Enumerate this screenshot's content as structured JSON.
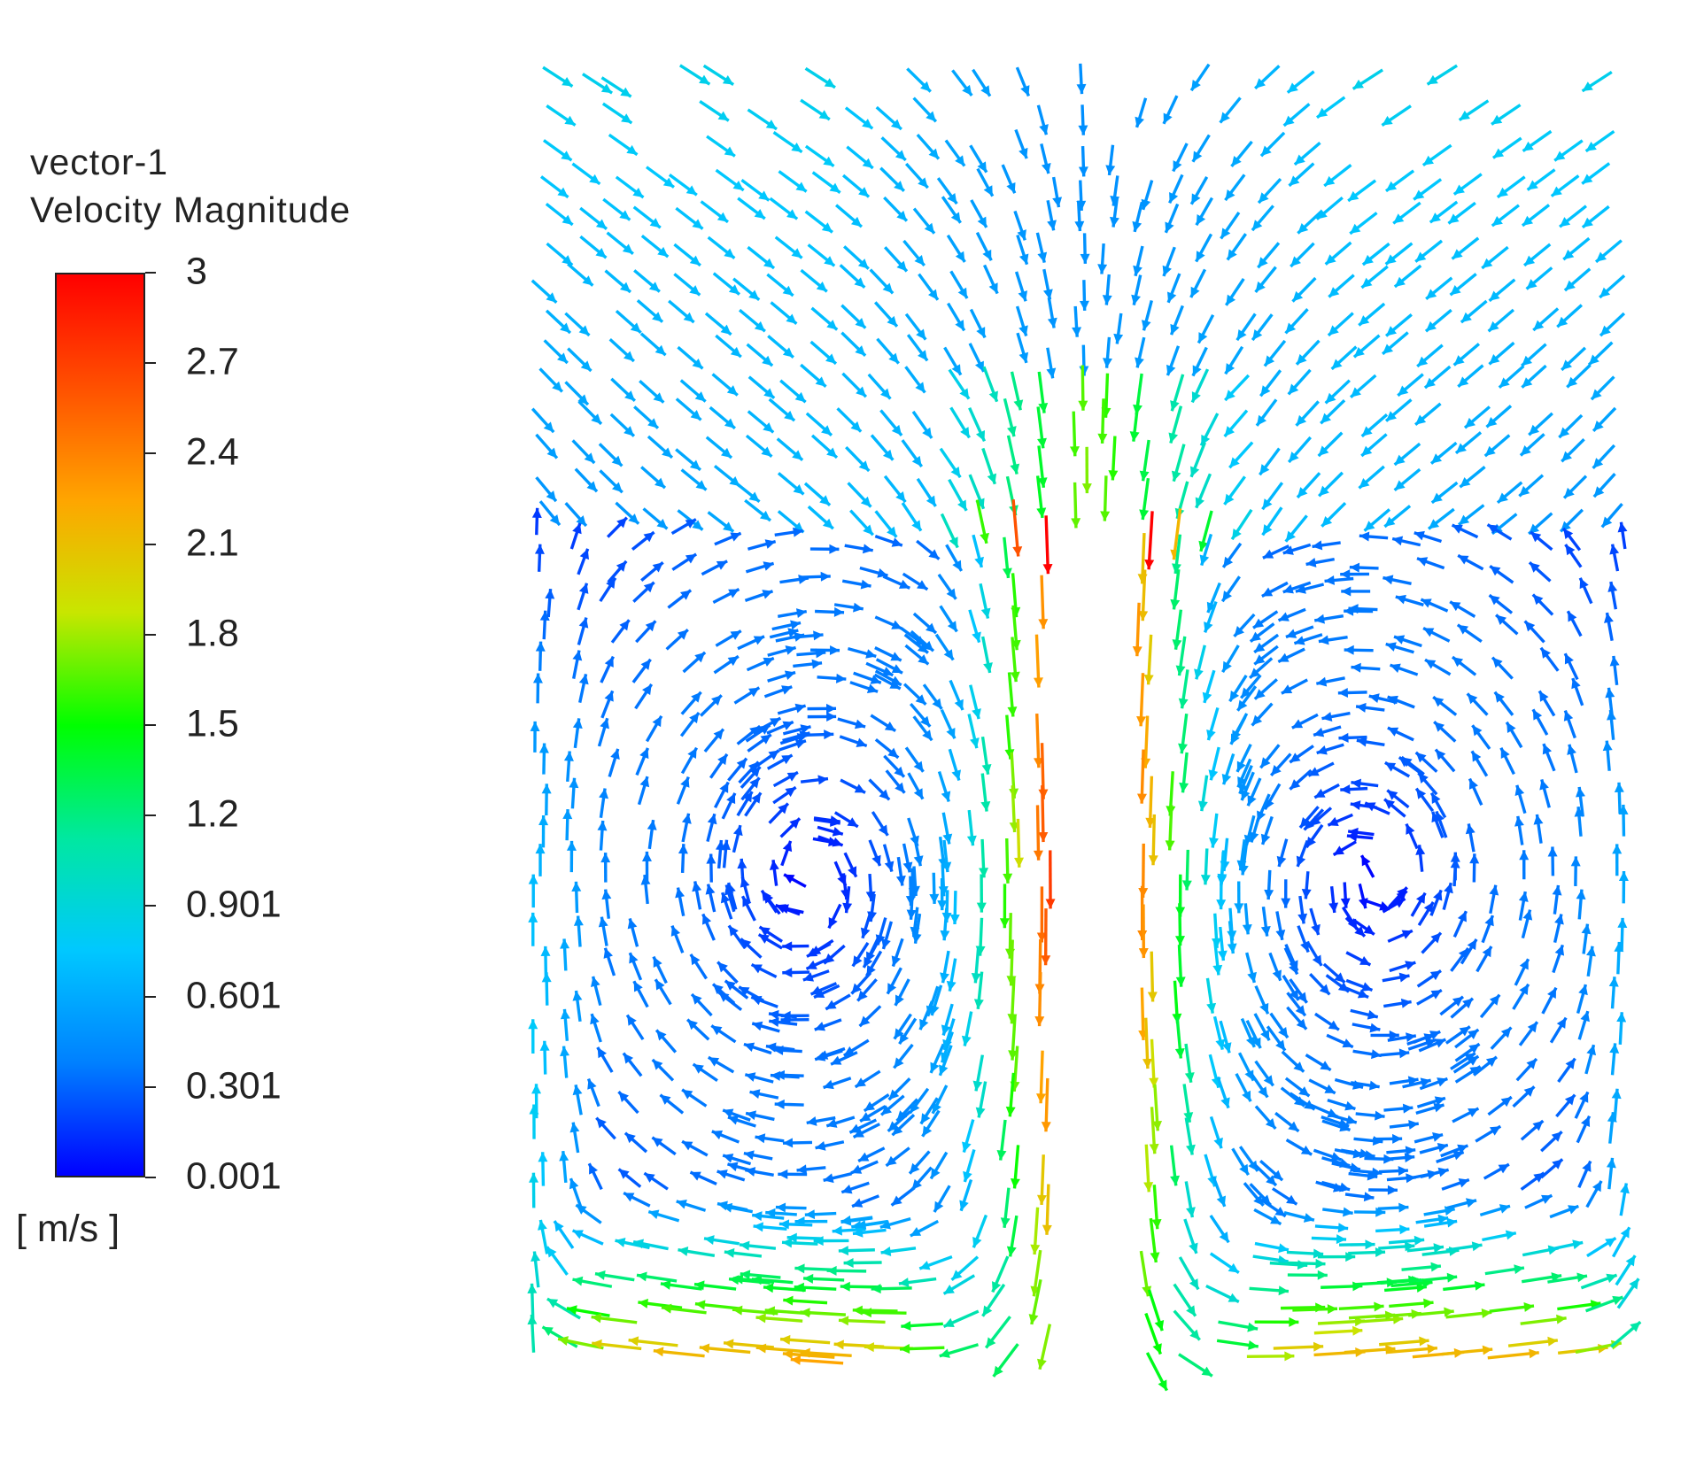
{
  "legend": {
    "title_line1": "vector-1",
    "title_line2": "Velocity Magnitude",
    "units": "[ m/s ]",
    "ticks": [
      "3",
      "2.7",
      "2.4",
      "2.1",
      "1.8",
      "1.5",
      "1.2",
      "0.901",
      "0.601",
      "0.301",
      "0.001"
    ]
  },
  "chart_data": {
    "type": "vector-field",
    "quantity": "Velocity Magnitude",
    "units": "m/s",
    "color_range": [
      0.001,
      3
    ],
    "colormap": [
      "#0000ff",
      "#0080ff",
      "#00c8ff",
      "#00e8a0",
      "#00ff00",
      "#c8e600",
      "#ffa500",
      "#ff5000",
      "#ff0000"
    ],
    "features": [
      {
        "description": "central downward jet",
        "peak_velocity": 2.8
      },
      {
        "description": "wall-jet along bottom, turning upward near side walls",
        "peak_velocity": 2.5
      },
      {
        "description": "left recirculation vortex",
        "rotation": "clockwise"
      },
      {
        "description": "right recirculation vortex",
        "rotation": "counterclockwise"
      },
      {
        "description": "slow flow near top",
        "peak_velocity": 0.6
      }
    ]
  }
}
